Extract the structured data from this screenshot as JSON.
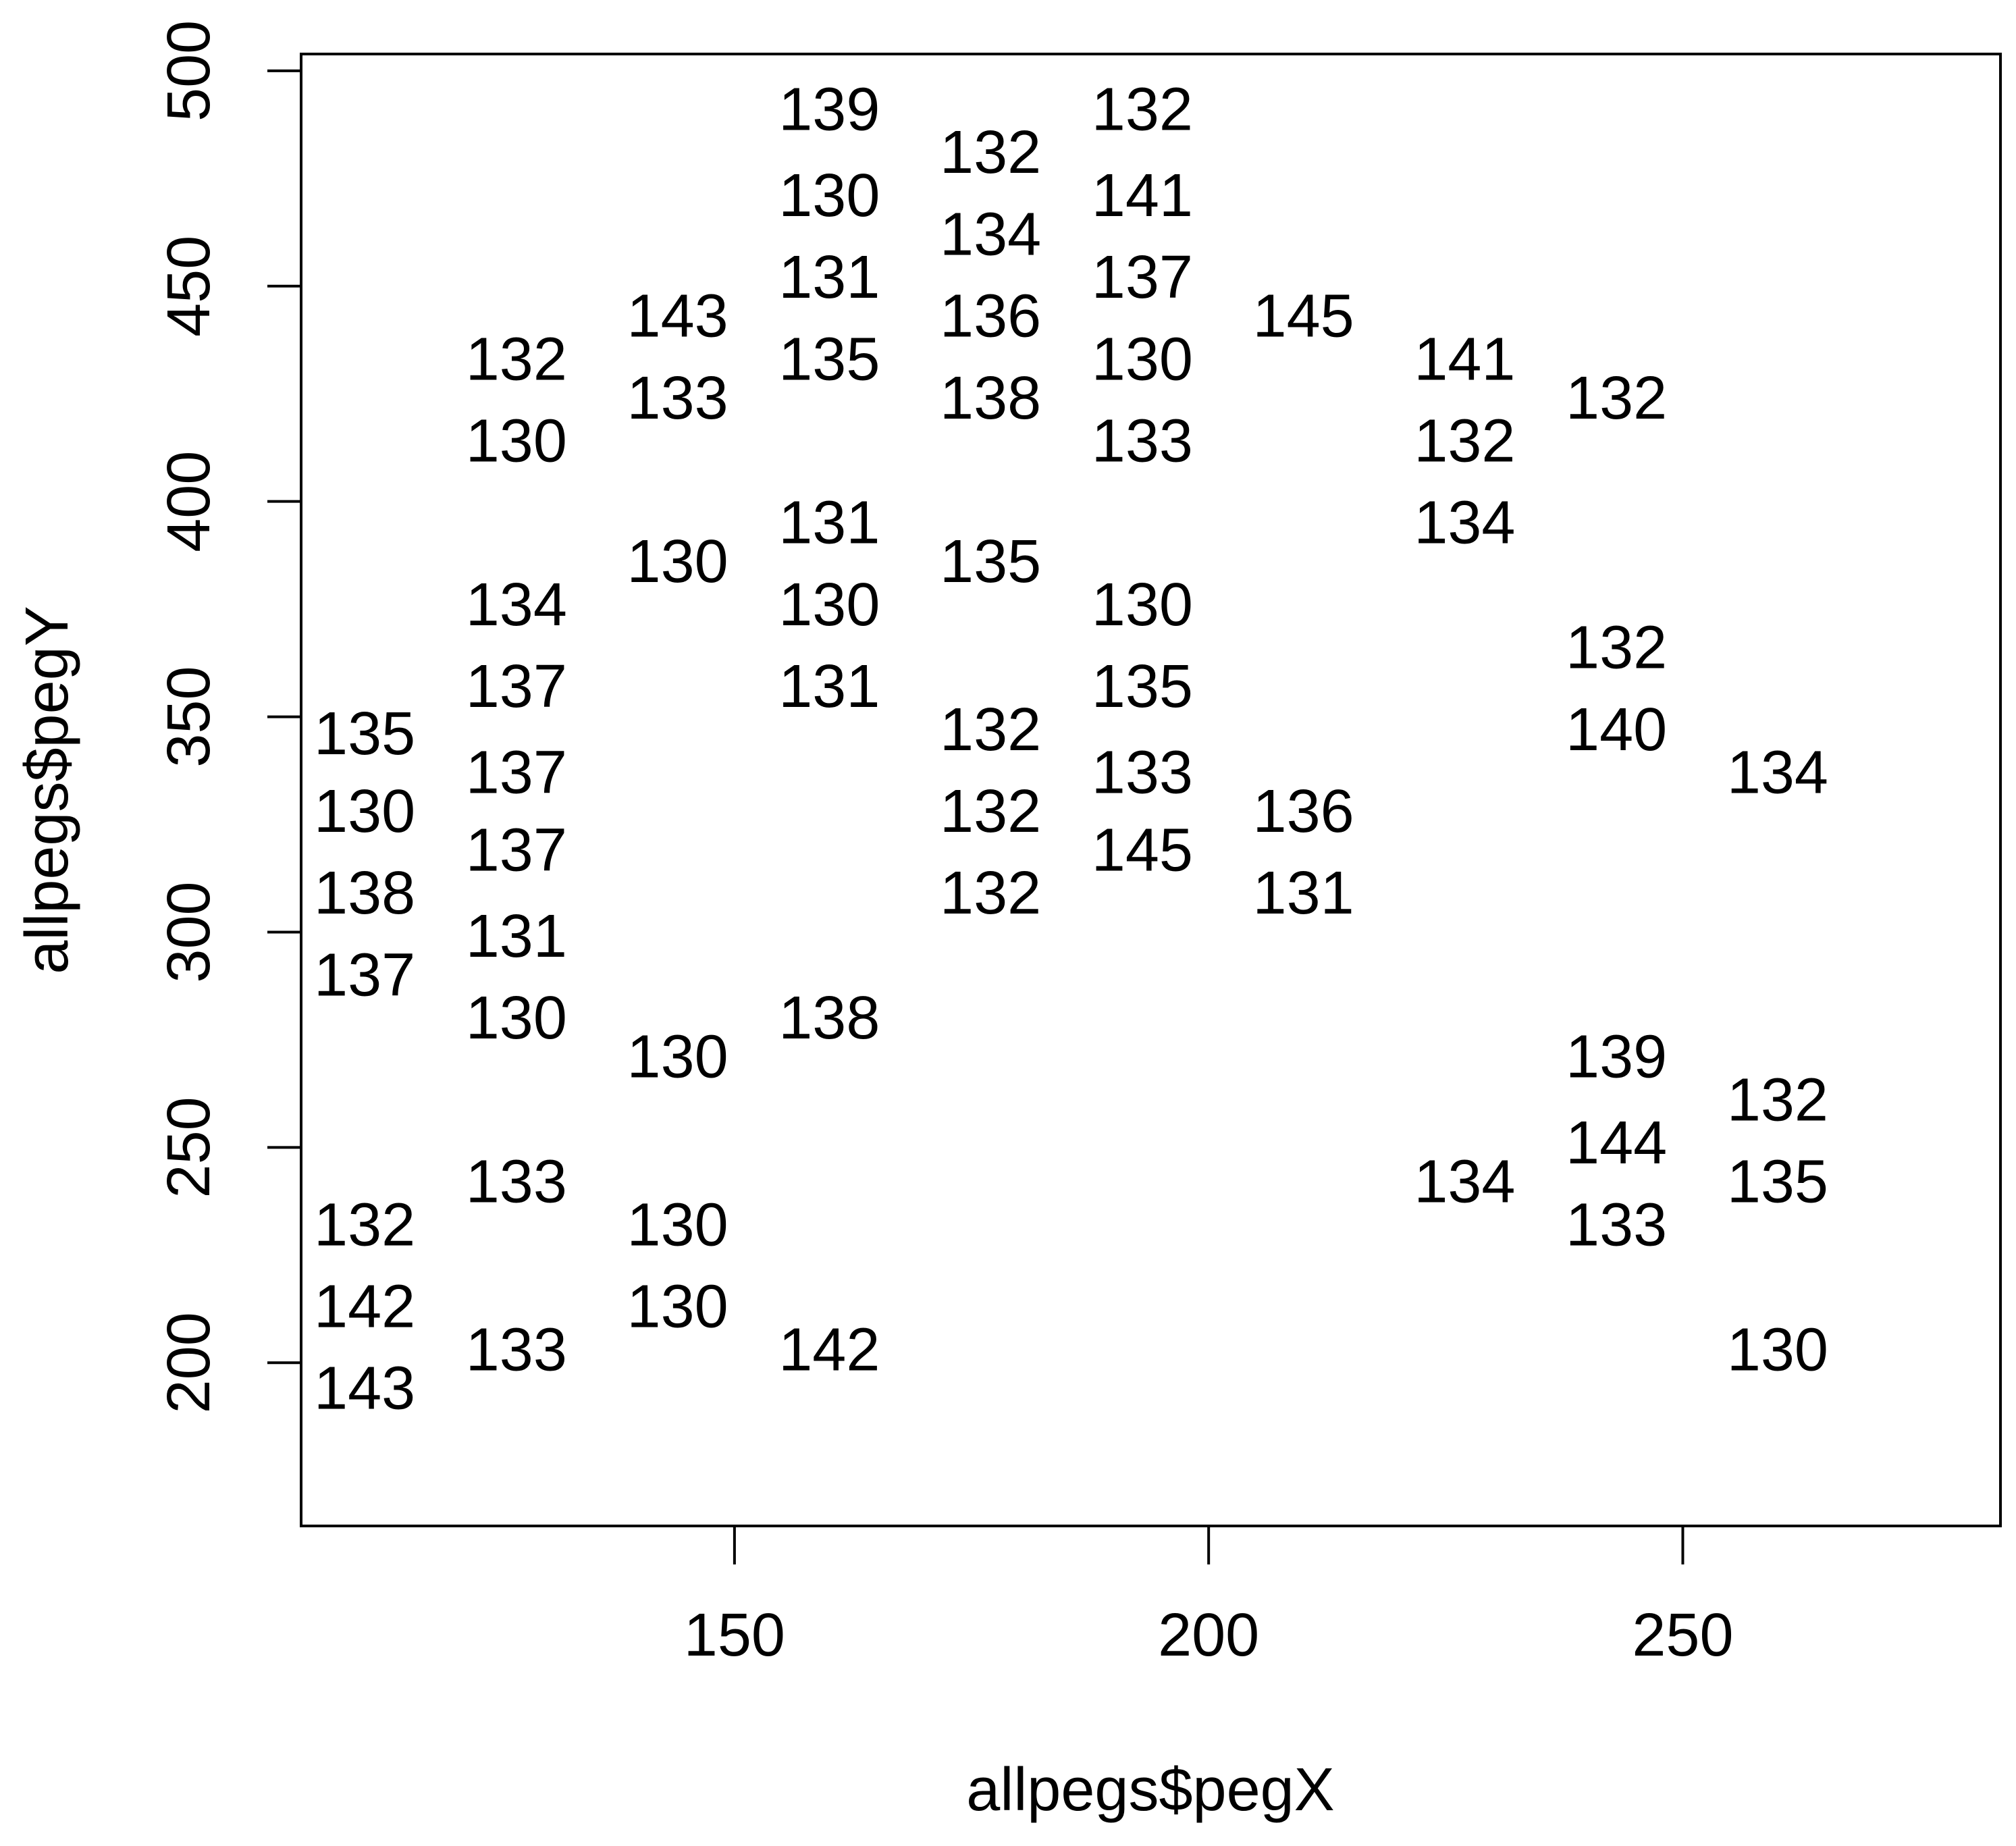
{
  "chart_data": {
    "type": "scatter",
    "x_label": "allpegs$pegX",
    "y_label": "allpegs$pegY",
    "x": [
      111,
      111,
      111,
      111,
      111,
      111,
      111,
      127,
      127,
      127,
      127,
      127,
      127,
      127,
      127,
      127,
      127,
      144,
      144,
      144,
      144,
      144,
      144,
      160,
      160,
      160,
      160,
      160,
      160,
      160,
      160,
      160,
      177,
      177,
      177,
      177,
      177,
      177,
      177,
      177,
      193,
      193,
      193,
      193,
      193,
      193,
      193,
      193,
      193,
      210,
      210,
      210,
      227,
      227,
      227,
      227,
      243,
      243,
      243,
      243,
      243,
      243,
      260,
      260,
      260,
      260
    ],
    "y": [
      345,
      327,
      308,
      289,
      231,
      212,
      193,
      432,
      413,
      375,
      356,
      336,
      318,
      298,
      279,
      241,
      202,
      442,
      423,
      385,
      270,
      231,
      212,
      490,
      470,
      451,
      432,
      394,
      375,
      356,
      279,
      202,
      480,
      461,
      442,
      423,
      385,
      346,
      327,
      308,
      490,
      470,
      451,
      432,
      413,
      375,
      356,
      336,
      318,
      442,
      327,
      308,
      432,
      413,
      394,
      241,
      423,
      365,
      346,
      270,
      250,
      231,
      336,
      260,
      241,
      202
    ],
    "labels": [
      135,
      130,
      138,
      137,
      132,
      142,
      143,
      132,
      130,
      134,
      137,
      137,
      137,
      131,
      130,
      133,
      133,
      143,
      133,
      130,
      130,
      130,
      130,
      139,
      130,
      131,
      135,
      131,
      130,
      131,
      138,
      142,
      132,
      134,
      136,
      138,
      135,
      132,
      132,
      132,
      132,
      141,
      137,
      130,
      133,
      130,
      135,
      133,
      145,
      145,
      136,
      131,
      141,
      132,
      134,
      134,
      132,
      132,
      140,
      139,
      144,
      133,
      134,
      132,
      135,
      130
    ],
    "xlim": [
      104.3,
      283.5
    ],
    "ylim": [
      162.1,
      503.9
    ],
    "xticks": [
      150,
      200,
      250
    ],
    "yticks": [
      200,
      250,
      300,
      350,
      400,
      450,
      500
    ],
    "color": "#000000"
  }
}
